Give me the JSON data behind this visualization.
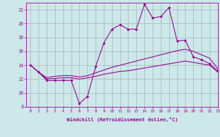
{
  "background_color": "#cce8e8",
  "grid_color": "#aabbbb",
  "line_color": "#990099",
  "xlim": [
    -0.5,
    23
  ],
  "ylim": [
    8,
    23
  ],
  "xticks": [
    0,
    1,
    2,
    3,
    4,
    5,
    6,
    7,
    8,
    9,
    10,
    11,
    12,
    13,
    14,
    15,
    16,
    17,
    18,
    19,
    20,
    21,
    22,
    23
  ],
  "yticks": [
    8,
    10,
    12,
    14,
    16,
    18,
    20,
    22
  ],
  "xlabel": "Windchill (Refroidissement éolien,°C)",
  "series1_x": [
    0,
    1,
    2,
    3,
    4,
    5,
    6,
    7,
    8,
    9,
    10,
    11,
    12,
    13,
    14,
    15,
    16,
    17,
    18,
    19,
    20,
    21,
    22,
    23
  ],
  "series1_y": [
    14.0,
    13.0,
    11.8,
    11.8,
    11.8,
    11.8,
    8.5,
    9.5,
    13.8,
    17.2,
    19.2,
    19.8,
    19.2,
    19.2,
    22.8,
    20.8,
    21.0,
    22.3,
    17.5,
    17.6,
    15.2,
    14.8,
    14.2,
    13.2
  ],
  "series2_x": [
    0,
    1,
    2,
    3,
    4,
    5,
    6,
    7,
    8,
    9,
    10,
    11,
    12,
    13,
    14,
    15,
    16,
    17,
    18,
    19,
    20,
    21,
    22,
    23
  ],
  "series2_y": [
    14.0,
    13.0,
    12.2,
    12.4,
    12.5,
    12.5,
    12.3,
    12.5,
    12.9,
    13.3,
    13.7,
    14.0,
    14.3,
    14.6,
    14.9,
    15.2,
    15.5,
    15.8,
    16.1,
    16.3,
    16.0,
    15.5,
    15.0,
    13.5
  ],
  "series3_x": [
    0,
    1,
    2,
    3,
    4,
    5,
    6,
    7,
    8,
    9,
    10,
    11,
    12,
    13,
    14,
    15,
    16,
    17,
    18,
    19,
    20,
    21,
    22,
    23
  ],
  "series3_y": [
    14.0,
    13.0,
    12.0,
    12.1,
    12.2,
    12.2,
    12.0,
    12.2,
    12.4,
    12.7,
    12.9,
    13.1,
    13.2,
    13.4,
    13.6,
    13.8,
    14.0,
    14.2,
    14.4,
    14.6,
    14.4,
    14.2,
    14.0,
    13.0
  ]
}
